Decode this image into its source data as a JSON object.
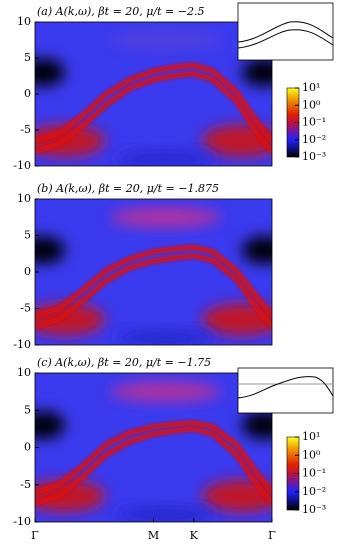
{
  "chart_data": [
    {
      "type": "heatmap",
      "title": "(a) A(k,ω), βt = 20, μ/t = −2.5",
      "ylim": [
        -10,
        10
      ],
      "yticks": [
        10,
        5,
        0,
        -5,
        -10
      ],
      "xlim": [
        0,
        1
      ],
      "inset": true,
      "series": [
        {
          "color": "#d81010",
          "x": [
            0,
            0.1,
            0.2,
            0.3,
            0.4,
            0.5,
            0.6,
            0.67,
            0.75,
            0.85,
            0.95,
            1
          ],
          "values": [
            -8,
            -7,
            -4.5,
            -1.5,
            0.8,
            2,
            2.6,
            2.8,
            2,
            -1,
            -6,
            -8
          ]
        },
        {
          "color": "#d81010",
          "x": [
            0,
            0.1,
            0.2,
            0.3,
            0.4,
            0.5,
            0.6,
            0.67,
            0.75,
            0.85,
            0.95,
            1
          ],
          "values": [
            -6.5,
            -5.5,
            -3,
            0,
            2,
            3.2,
            3.8,
            4,
            3.2,
            0.3,
            -4.5,
            -6.5
          ]
        }
      ],
      "colorbar": {
        "lim": [
          0.001,
          10
        ],
        "log": true,
        "ticks": [
          {
            "value": 10,
            "label": "10¹"
          },
          {
            "value": 1,
            "label": "10⁰"
          },
          {
            "value": 0.1,
            "label": "10⁻¹"
          },
          {
            "value": 0.01,
            "label": "10⁻²"
          },
          {
            "value": 0.001,
            "label": "10⁻³"
          }
        ]
      }
    },
    {
      "type": "heatmap",
      "title": "(b) A(k,ω), βt = 20, μ/t = −1.875",
      "ylim": [
        -10,
        10
      ],
      "yticks": [
        10,
        5,
        0,
        -5,
        -10
      ],
      "xlim": [
        0,
        1
      ],
      "series": [
        {
          "color": "#d81010",
          "x": [
            0,
            0.1,
            0.2,
            0.3,
            0.4,
            0.5,
            0.6,
            0.67,
            0.75,
            0.85,
            0.95,
            1
          ],
          "values": [
            -7.5,
            -6.5,
            -4,
            -1.2,
            0.6,
            1.5,
            2,
            2.2,
            1.6,
            -1,
            -5.5,
            -7.5
          ]
        },
        {
          "color": "#d81010",
          "x": [
            0,
            0.1,
            0.2,
            0.3,
            0.4,
            0.5,
            0.6,
            0.67,
            0.75,
            0.85,
            0.95,
            1
          ],
          "values": [
            -6,
            -5,
            -2.5,
            0.2,
            1.8,
            2.8,
            3.2,
            3.4,
            2.8,
            0.2,
            -4,
            -6
          ]
        }
      ]
    },
    {
      "type": "heatmap",
      "title": "(c) A(k,ω), βt = 20, μ/t = −1.75",
      "ylim": [
        -10,
        10
      ],
      "yticks": [
        10,
        5,
        0,
        -5,
        -10
      ],
      "xlim": [
        0,
        1
      ],
      "inset": true,
      "xticks": [
        {
          "value": 0,
          "label": "Γ"
        },
        {
          "value": 0.5,
          "label": "M"
        },
        {
          "value": 0.67,
          "label": "K"
        },
        {
          "value": 1,
          "label": "Γ"
        }
      ],
      "series": [
        {
          "color": "#d81010",
          "x": [
            0,
            0.1,
            0.2,
            0.3,
            0.4,
            0.5,
            0.6,
            0.67,
            0.75,
            0.85,
            0.95,
            1
          ],
          "values": [
            -7.5,
            -6.5,
            -4,
            -1,
            0.8,
            1.8,
            2.3,
            2.5,
            1.8,
            -1,
            -5.5,
            -7.5
          ]
        },
        {
          "color": "#d81010",
          "x": [
            0,
            0.1,
            0.2,
            0.3,
            0.4,
            0.5,
            0.6,
            0.67,
            0.75,
            0.85,
            0.95,
            1
          ],
          "values": [
            -6,
            -5,
            -2.5,
            0.4,
            2,
            2.8,
            3.2,
            3.3,
            2.8,
            0.4,
            -4,
            -6
          ]
        }
      ],
      "colorbar": {
        "lim": [
          0.001,
          10
        ],
        "log": true,
        "ticks": [
          {
            "value": 10,
            "label": "10¹"
          },
          {
            "value": 1,
            "label": "10⁰"
          },
          {
            "value": 0.1,
            "label": "10⁻¹"
          },
          {
            "value": 0.01,
            "label": "10⁻²"
          },
          {
            "value": 0.001,
            "label": "10⁻³"
          }
        ]
      }
    }
  ]
}
